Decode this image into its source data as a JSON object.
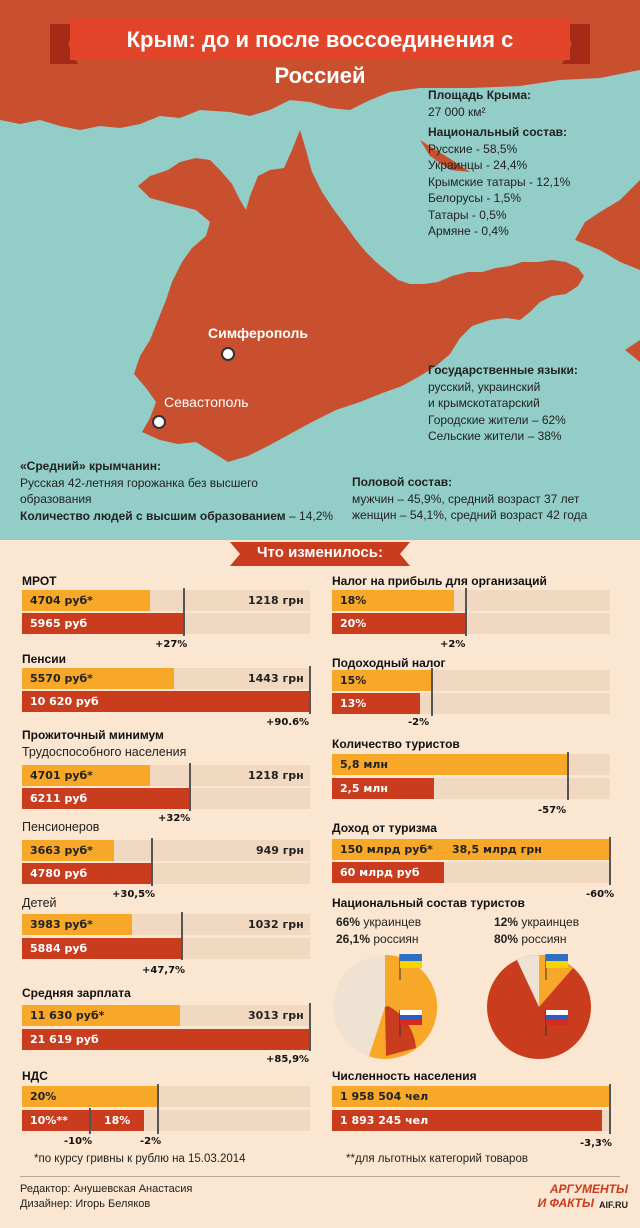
{
  "title": "Крым: до и после воссоединения с Россией",
  "colors": {
    "map_red": "#c9502f",
    "sea": "#93cdc7",
    "orange": "#f7a829",
    "red": "#c93c1e",
    "bg": "#fbe6d1"
  },
  "map": {
    "area_label": "Площадь Крыма:",
    "area_value": "27 000 км²",
    "nat_label": "Национальный состав:",
    "nationalities": [
      "Русские - 58,5%",
      "Украинцы - 24,4%",
      "Крымские татары - 12,1%",
      "Белорусы - 1,5%",
      "Татары - 0,5%",
      "Армяне - 0,4%"
    ],
    "lang_label": "Государственные языки:",
    "languages_1": "русский, украинский",
    "languages_2": "и крымскотатарский",
    "urban": "Городские жители – 62%",
    "rural": "Сельские жители – 38%",
    "city_1": "Симферополь",
    "city_2": "Севастополь",
    "avg_label": "«Средний» крымчанин:",
    "avg_desc_1": "Русская 42-летняя горожанка без высшего",
    "avg_desc_2": "образования",
    "edu_label": "Количество людей с высшим образованием",
    "edu_value": "– 14,2%",
    "gender_label": "Половой состав:",
    "men": "мужчин – 45,9%, средний возраст 37 лет",
    "women": "женщин – 54,1%, средний возраст 42 года"
  },
  "section_title": "Что изменилось:",
  "left": {
    "mrot": {
      "label": "МРОТ",
      "before": "4704 руб*",
      "before_uah": "1218 грн",
      "after": "5965 руб",
      "change": "+27%"
    },
    "pension": {
      "label": "Пенсии",
      "before": "5570 руб*",
      "before_uah": "1443 грн",
      "after": "10 620 руб",
      "change": "+90.6%"
    },
    "subsistence": {
      "label": "Прожиточный минимум"
    },
    "working": {
      "label": "Трудоспособного населения",
      "before": "4701 руб*",
      "before_uah": "1218 грн",
      "after": "6211 руб",
      "change": "+32%"
    },
    "pensioners": {
      "label": "Пенсионеров",
      "before": "3663 руб*",
      "before_uah": "949 грн",
      "after": "4780 руб",
      "change": "+30,5%"
    },
    "children": {
      "label": "Детей",
      "before": "3983 руб*",
      "before_uah": "1032 грн",
      "after": "5884 руб",
      "change": "+47,7%"
    },
    "salary": {
      "label": "Средняя зарплата",
      "before": "11 630 руб*",
      "before_uah": "3013 грн",
      "after": "21 619 руб",
      "change": "+85,9%"
    },
    "vat": {
      "label": "НДС",
      "before": "20%",
      "after_reduced": "10%**",
      "after": "18%",
      "change_reduced": "-10%",
      "change": "-2%"
    }
  },
  "right": {
    "profit_tax": {
      "label": "Налог на прибыль для организаций",
      "before": "18%",
      "after": "20%",
      "change": "+2%"
    },
    "income_tax": {
      "label": "Подоходный налог",
      "before": "15%",
      "after": "13%",
      "change": "-2%"
    },
    "tourists": {
      "label": "Количество туристов",
      "before": "5,8 млн",
      "after": "2,5 млн",
      "change": "-57%"
    },
    "tourism_income": {
      "label": "Доход от туризма",
      "before": "150 млрд руб*",
      "before_uah": "38,5 млрд грн",
      "after": "60 млрд руб",
      "change": "-60%"
    },
    "tourist_nat": {
      "label": "Национальный состав туристов",
      "pie1_line1_pct": "66%",
      "pie1_line1": "украинцев",
      "pie1_line2_pct": "26,1%",
      "pie1_line2": "россиян",
      "pie2_line1_pct": "12%",
      "pie2_line1": "украинцев",
      "pie2_line2_pct": "80%",
      "pie2_line2": "россиян"
    },
    "population": {
      "label": "Численность населения",
      "before": "1 958 504 чел",
      "after": "1 893 245 чел",
      "change": "-3,3%"
    }
  },
  "footnotes": {
    "one": "*по курсу гривны к рублю на 15.03.2014",
    "two": "**для льготных категорий товаров"
  },
  "credits": {
    "editor": "Редактор: Анушевская Анастасия",
    "designer": "Дизайнер: Игорь Беляков"
  },
  "logo": {
    "line1": "АРГУМЕНТЫ",
    "line2": "И ФАКТЫ",
    "site": "AIF.RU"
  }
}
